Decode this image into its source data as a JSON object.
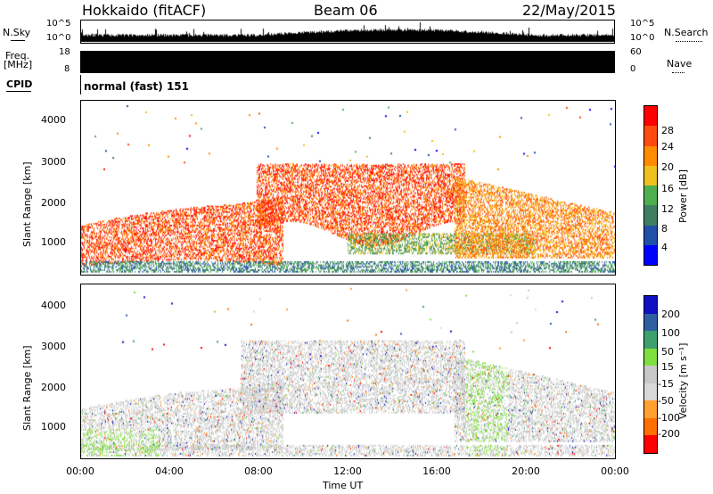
{
  "header": {
    "station": "Hokkaido (fitACF)",
    "beam": "Beam 06",
    "date": "22/May/2015"
  },
  "noise_panel": {
    "left_label": "N.Sky",
    "right_label": "N.Search",
    "left_ticks": [
      "10^5",
      "10^0"
    ],
    "right_ticks": [
      "10^5",
      "10^0"
    ]
  },
  "freq_panel": {
    "left_label_1": "Freq.",
    "left_label_2": "[MHz]",
    "right_label": "Nave",
    "left_ticks": [
      "18",
      "8"
    ],
    "right_ticks": [
      "60",
      "0"
    ]
  },
  "cpid": {
    "label": "CPID",
    "text": "normal (fast) 151"
  },
  "colors": {
    "power_scale": [
      "#0000ff",
      "#1f4fa8",
      "#3f7f5f",
      "#4faf4f",
      "#f0c020",
      "#ff8c00",
      "#ff4a10",
      "#ff0000"
    ],
    "velocity_scale": [
      "#ff0000",
      "#ff7000",
      "#ffa030",
      "#d8d8d8",
      "#c8c8c8",
      "#7fdf3f",
      "#3fa06f",
      "#2f5fa0",
      "#1010c0"
    ]
  },
  "chart_data": [
    {
      "type": "heatmap",
      "title": "",
      "xlabel": "Time UT",
      "ylabel": "Slant Range [km]",
      "x_ticks": [
        "00:00",
        "04:00",
        "08:00",
        "12:00",
        "16:00",
        "20:00",
        "00:00"
      ],
      "y_ticks": [
        "1000",
        "2000",
        "3000",
        "4000"
      ],
      "ylim": [
        200,
        4500
      ],
      "colorbar": {
        "label": "Power [dB]",
        "ticks": [
          "4",
          "8",
          "12",
          "16",
          "20",
          "24",
          "28"
        ],
        "range": [
          0,
          30
        ]
      }
    },
    {
      "type": "heatmap",
      "title": "",
      "xlabel": "Time UT",
      "ylabel": "Slant Range [km]",
      "x_ticks": [
        "00:00",
        "04:00",
        "08:00",
        "12:00",
        "16:00",
        "20:00",
        "00:00"
      ],
      "y_ticks": [
        "1000",
        "2000",
        "3000",
        "4000"
      ],
      "ylim": [
        200,
        4500
      ],
      "colorbar": {
        "label": "Velocity [m s⁻¹]",
        "ticks": [
          "200",
          "100",
          "50",
          "15",
          "-15",
          "-50",
          "-100",
          "-200"
        ],
        "range": [
          -250,
          250
        ]
      }
    }
  ]
}
